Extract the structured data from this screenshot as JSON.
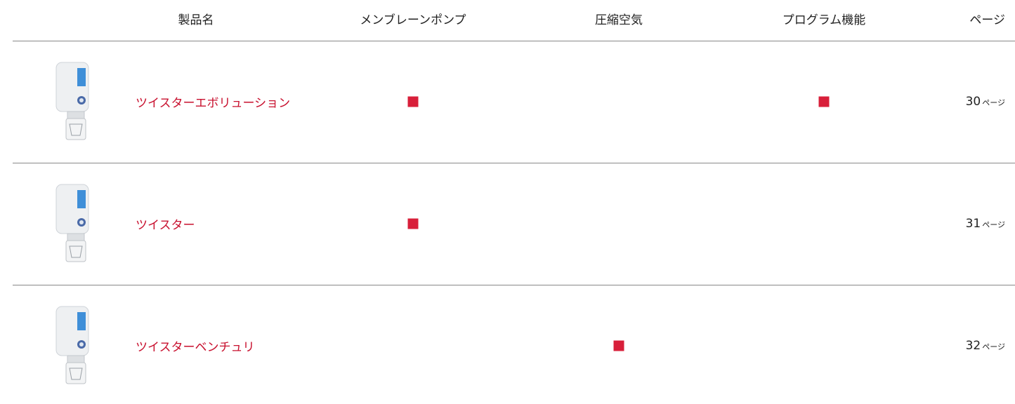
{
  "table": {
    "columns": [
      "製品名",
      "メンブレーンポンプ",
      "圧縮空気",
      "プログラム機能",
      "ページ"
    ],
    "rows": [
      {
        "name": "ツイスターエボリューション",
        "features": [
          true,
          false,
          true
        ],
        "page": 30,
        "page_unit": "ページ"
      },
      {
        "name": "ツイスター",
        "features": [
          true,
          false,
          false
        ],
        "page": 31,
        "page_unit": "ページ"
      },
      {
        "name": "ツイスターベンチュリ",
        "features": [
          false,
          true,
          false
        ],
        "page": 32,
        "page_unit": "ページ"
      }
    ],
    "mark_color": "#d81f3a",
    "name_color": "#c8102e"
  }
}
